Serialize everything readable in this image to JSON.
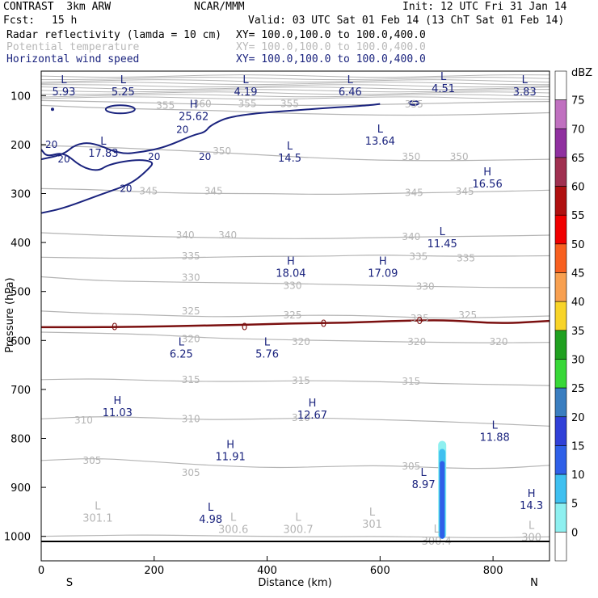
{
  "header": {
    "title": "CONTRAST  3km ARW",
    "source": "NCAR/MMM",
    "init": "Init: 12 UTC Fri 31 Jan 14",
    "fcst_label": "Fcst:",
    "fcst_value": "15 h",
    "valid": "Valid: 03 UTC Sat 01 Feb 14 (13 ChT Sat 01 Feb 14)",
    "fields": [
      {
        "name": "Radar reflectivity (lamda = 10 cm)",
        "xy": "XY= 100.0,100.0 to 100.0,400.0",
        "color": "#000000"
      },
      {
        "name": "Potential temperature",
        "xy": "XY= 100.0,100.0 to 100.0,400.0",
        "color": "#bbbbbb"
      },
      {
        "name": "Horizontal wind speed",
        "xy": "XY= 100.0,100.0 to 100.0,400.0",
        "color": "#1a237e"
      }
    ]
  },
  "chart_data": {
    "type": "contour",
    "xlabel": "Distance (km)",
    "ylabel": "Pressure (hPa)",
    "xlim": [
      0,
      900
    ],
    "ylim": [
      1050,
      50
    ],
    "xticks": [
      0,
      200,
      400,
      600,
      800
    ],
    "yticks": [
      100,
      200,
      300,
      400,
      500,
      600,
      700,
      800,
      900,
      1000
    ],
    "left_end_label": "S",
    "right_end_label": "N",
    "colorbar": {
      "unit": "dBZ",
      "levels": [
        0,
        5,
        10,
        15,
        20,
        25,
        30,
        35,
        40,
        45,
        50,
        55,
        60,
        65,
        70,
        75
      ],
      "colors": [
        "#ffffff",
        "#8ef0f0",
        "#3fc0f0",
        "#2f60e8",
        "#3040d8",
        "#3a7ec0",
        "#38d838",
        "#20a020",
        "#f8d428",
        "#f8a050",
        "#f86020",
        "#f00000",
        "#b01010",
        "#a03050",
        "#9030a0",
        "#c070c0",
        "#ffffff"
      ]
    },
    "theta_contours": [
      {
        "label": "300",
        "y": [
          1000,
          998,
          997,
          999,
          1000,
          1001,
          1000,
          1002,
          1003,
          1001
        ]
      },
      {
        "label": "305",
        "y": [
          845,
          840,
          848,
          855,
          860,
          858,
          855,
          860,
          862,
          855
        ]
      },
      {
        "label": "310",
        "y": [
          760,
          755,
          758,
          762,
          760,
          758,
          762,
          765,
          770,
          775
        ]
      },
      {
        "label": "315",
        "y": [
          680,
          678,
          682,
          684,
          683,
          682,
          684,
          688,
          690,
          692
        ]
      },
      {
        "label": "320",
        "y": [
          583,
          585,
          588,
          595,
          598,
          600,
          602,
          604,
          605,
          604
        ]
      },
      {
        "label": "325",
        "y": [
          540,
          545,
          548,
          552,
          550,
          548,
          550,
          555,
          553,
          550
        ]
      },
      {
        "label": "330",
        "y": [
          470,
          478,
          480,
          482,
          483,
          485,
          488,
          490,
          492,
          492
        ]
      },
      {
        "label": "335",
        "y": [
          430,
          432,
          432,
          430,
          428,
          428,
          425,
          428,
          428,
          427
        ]
      },
      {
        "label": "340",
        "y": [
          380,
          385,
          388,
          390,
          392,
          392,
          390,
          388,
          387,
          385
        ]
      },
      {
        "label": "345",
        "y": [
          290,
          292,
          298,
          300,
          300,
          302,
          300,
          298,
          296,
          293
        ]
      },
      {
        "label": "350",
        "y": [
          202,
          205,
          210,
          215,
          222,
          228,
          232,
          233,
          232,
          230
        ]
      },
      {
        "label": "355",
        "y": [
          120,
          125,
          128,
          130,
          135,
          138,
          140,
          140,
          138,
          135
        ]
      },
      {
        "label": "360",
        "y": [
          110,
          112,
          115,
          118,
          120,
          120,
          118,
          116,
          113,
          112
        ]
      }
    ],
    "theta_label_positions": [
      {
        "text": "355",
        "x": 220,
        "p": 120
      },
      {
        "text": "360",
        "x": 285,
        "p": 117
      },
      {
        "text": "355",
        "x": 365,
        "p": 117
      },
      {
        "text": "355",
        "x": 440,
        "p": 117
      },
      {
        "text": "355",
        "x": 660,
        "p": 118
      },
      {
        "text": "350",
        "x": 320,
        "p": 213
      },
      {
        "text": "350",
        "x": 655,
        "p": 225
      },
      {
        "text": "350",
        "x": 740,
        "p": 225
      },
      {
        "text": "345",
        "x": 190,
        "p": 295
      },
      {
        "text": "345",
        "x": 305,
        "p": 295
      },
      {
        "text": "345",
        "x": 660,
        "p": 298
      },
      {
        "text": "345",
        "x": 750,
        "p": 296
      },
      {
        "text": "340",
        "x": 255,
        "p": 385
      },
      {
        "text": "340",
        "x": 330,
        "p": 385
      },
      {
        "text": "340",
        "x": 655,
        "p": 388
      },
      {
        "text": "335",
        "x": 265,
        "p": 428
      },
      {
        "text": "335",
        "x": 668,
        "p": 429
      },
      {
        "text": "335",
        "x": 752,
        "p": 432
      },
      {
        "text": "330",
        "x": 265,
        "p": 472
      },
      {
        "text": "330",
        "x": 445,
        "p": 488
      },
      {
        "text": "330",
        "x": 680,
        "p": 490
      },
      {
        "text": "325",
        "x": 265,
        "p": 540
      },
      {
        "text": "325",
        "x": 445,
        "p": 548
      },
      {
        "text": "325",
        "x": 670,
        "p": 555
      },
      {
        "text": "325",
        "x": 755,
        "p": 548
      },
      {
        "text": "320",
        "x": 265,
        "p": 597
      },
      {
        "text": "320",
        "x": 460,
        "p": 603
      },
      {
        "text": "320",
        "x": 665,
        "p": 603
      },
      {
        "text": "320",
        "x": 810,
        "p": 603
      },
      {
        "text": "315",
        "x": 265,
        "p": 680
      },
      {
        "text": "315",
        "x": 460,
        "p": 682
      },
      {
        "text": "315",
        "x": 655,
        "p": 684
      },
      {
        "text": "310",
        "x": 75,
        "p": 763
      },
      {
        "text": "310",
        "x": 265,
        "p": 760
      },
      {
        "text": "310",
        "x": 460,
        "p": 758
      },
      {
        "text": "305",
        "x": 90,
        "p": 845
      },
      {
        "text": "305",
        "x": 265,
        "p": 870
      },
      {
        "text": "305",
        "x": 655,
        "p": 857
      }
    ],
    "freezing_level": {
      "label": "0",
      "p": [
        573,
        573,
        572,
        570,
        568,
        565,
        564,
        560,
        558,
        566,
        560
      ]
    },
    "wind_20_contours": [
      {
        "label": "20",
        "pts": [
          [
            0,
            230
          ],
          [
            40,
            220
          ],
          [
            60,
            200
          ],
          [
            90,
            195
          ],
          [
            140,
            220
          ],
          [
            180,
            215
          ],
          [
            220,
            205
          ],
          [
            270,
            180
          ],
          [
            290,
            175
          ],
          [
            300,
            160
          ],
          [
            340,
            140
          ],
          [
            470,
            128
          ],
          [
            580,
            120
          ],
          [
            600,
            117
          ]
        ]
      },
      {
        "label": "20",
        "pts": [
          [
            0,
            340
          ],
          [
            40,
            330
          ],
          [
            110,
            300
          ],
          [
            160,
            280
          ],
          [
            190,
            250
          ],
          [
            200,
            235
          ],
          [
            170,
            230
          ],
          [
            120,
            240
          ],
          [
            100,
            255
          ],
          [
            70,
            245
          ],
          [
            40,
            215
          ],
          [
            10,
            225
          ],
          [
            0,
            210
          ]
        ]
      }
    ],
    "reflectivity_column": {
      "x_km": 710,
      "p_top": 805,
      "p_bottom": 1005,
      "dbz_max": 20
    },
    "annotations": [
      {
        "type": "L",
        "value": "5.93",
        "x": 40,
        "p": 75,
        "color": "navy"
      },
      {
        "type": "L",
        "value": "5.25",
        "x": 145,
        "p": 75,
        "color": "navy"
      },
      {
        "type": "L",
        "value": "4.19",
        "x": 362,
        "p": 75,
        "color": "navy"
      },
      {
        "type": "L",
        "value": "6.46",
        "x": 547,
        "p": 75,
        "color": "navy"
      },
      {
        "type": "L",
        "value": "4.51",
        "x": 712,
        "p": 68,
        "color": "navy"
      },
      {
        "type": "L",
        "value": "3.83",
        "x": 856,
        "p": 75,
        "color": "navy"
      },
      {
        "type": "H",
        "value": "25.62",
        "x": 270,
        "p": 125,
        "color": "navy"
      },
      {
        "type": "L",
        "value": "17.83",
        "x": 110,
        "p": 200,
        "color": "navy"
      },
      {
        "type": "L",
        "value": "14.5",
        "x": 440,
        "p": 210,
        "color": "navy"
      },
      {
        "type": "L",
        "value": "13.64",
        "x": 600,
        "p": 175,
        "color": "navy"
      },
      {
        "type": "H",
        "value": "16.56",
        "x": 790,
        "p": 263,
        "color": "navy"
      },
      {
        "type": "L",
        "value": "11.45",
        "x": 710,
        "p": 385,
        "color": "navy"
      },
      {
        "type": "H",
        "value": "18.04",
        "x": 442,
        "p": 445,
        "color": "navy"
      },
      {
        "type": "H",
        "value": "17.09",
        "x": 605,
        "p": 445,
        "color": "navy"
      },
      {
        "type": "L",
        "value": "6.25",
        "x": 248,
        "p": 610,
        "color": "navy"
      },
      {
        "type": "L",
        "value": "5.76",
        "x": 400,
        "p": 610,
        "color": "navy"
      },
      {
        "type": "H",
        "value": "11.03",
        "x": 135,
        "p": 730,
        "color": "navy"
      },
      {
        "type": "H",
        "value": "12.67",
        "x": 480,
        "p": 735,
        "color": "navy"
      },
      {
        "type": "L",
        "value": "11.88",
        "x": 803,
        "p": 780,
        "color": "navy"
      },
      {
        "type": "H",
        "value": "11.91",
        "x": 335,
        "p": 820,
        "color": "navy"
      },
      {
        "type": "L",
        "value": "8.97",
        "x": 677,
        "p": 877,
        "color": "navy"
      },
      {
        "type": "H",
        "value": "14.3",
        "x": 868,
        "p": 920,
        "color": "navy"
      },
      {
        "type": "L",
        "value": "4.98",
        "x": 300,
        "p": 948,
        "color": "navy"
      },
      {
        "type": "L",
        "value": "301.1",
        "x": 100,
        "p": 945,
        "color": "gray"
      },
      {
        "type": "L",
        "value": "300.6",
        "x": 340,
        "p": 968,
        "color": "gray"
      },
      {
        "type": "L",
        "value": "300.7",
        "x": 455,
        "p": 968,
        "color": "gray"
      },
      {
        "type": "L",
        "value": "301",
        "x": 586,
        "p": 958,
        "color": "gray"
      },
      {
        "type": "L",
        "value": "300.4",
        "x": 700,
        "p": 992,
        "color": "gray"
      },
      {
        "type": "L",
        "value": "300",
        "x": 868,
        "p": 985,
        "color": "gray"
      }
    ]
  }
}
